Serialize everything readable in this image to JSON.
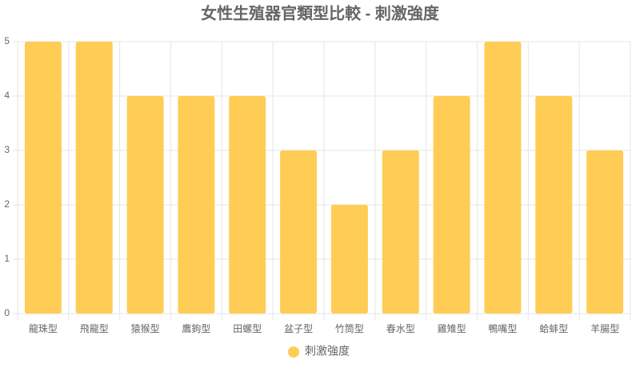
{
  "chart_data": {
    "type": "bar",
    "title": "女性生殖器官類型比較 - 刺激強度",
    "categories": [
      "龍珠型",
      "飛龍型",
      "猿猴型",
      "鷹鉤型",
      "田螺型",
      "盆子型",
      "竹筒型",
      "春水型",
      "雞雉型",
      "鴨嘴型",
      "蛤蚌型",
      "羊腸型"
    ],
    "series": [
      {
        "name": "刺激強度",
        "color": "#ffcd56",
        "values": [
          5,
          5,
          4,
          4,
          4,
          3,
          2,
          3,
          4,
          5,
          4,
          3
        ]
      }
    ],
    "ylim": [
      0,
      5
    ],
    "yticks": [
      0,
      1,
      2,
      3,
      4,
      5
    ],
    "grid": true,
    "legend": "bottom"
  }
}
